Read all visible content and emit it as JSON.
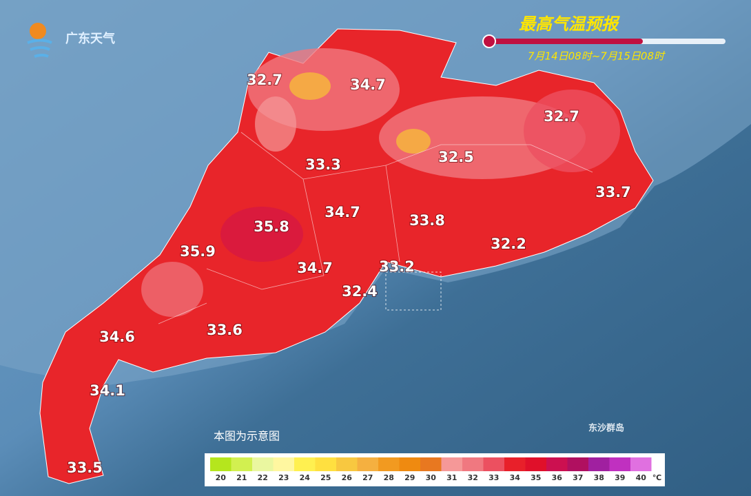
{
  "logo": "广东天气",
  "title": "最高气温预报",
  "subtitle": "7月14日08时~7月15日08时",
  "note": "本图为示意图",
  "island_label": "东沙群岛",
  "temperature_labels": [
    32.7,
    34.7,
    32.7,
    33.3,
    32.5,
    33.7,
    34.7,
    35.8,
    33.8,
    35.9,
    32.2,
    34.7,
    33.2,
    32.4,
    34.6,
    33.6,
    34.1,
    33.5
  ],
  "legend": {
    "values": [
      20,
      21,
      22,
      23,
      24,
      25,
      26,
      27,
      28,
      29,
      30,
      31,
      32,
      33,
      34,
      35,
      36,
      37,
      38,
      39,
      40
    ],
    "colors": [
      "#b5e61d",
      "#d2f050",
      "#eaf7a0",
      "#fff7a0",
      "#fff050",
      "#ffe040",
      "#f8c840",
      "#f5b040",
      "#f29a20",
      "#ef8a10",
      "#e87820",
      "#f59898",
      "#f07880",
      "#ec5060",
      "#e8202a",
      "#e0102a",
      "#cc1050",
      "#b01060",
      "#a020a0",
      "#c030c0",
      "#e070e0"
    ],
    "unit": "℃"
  }
}
